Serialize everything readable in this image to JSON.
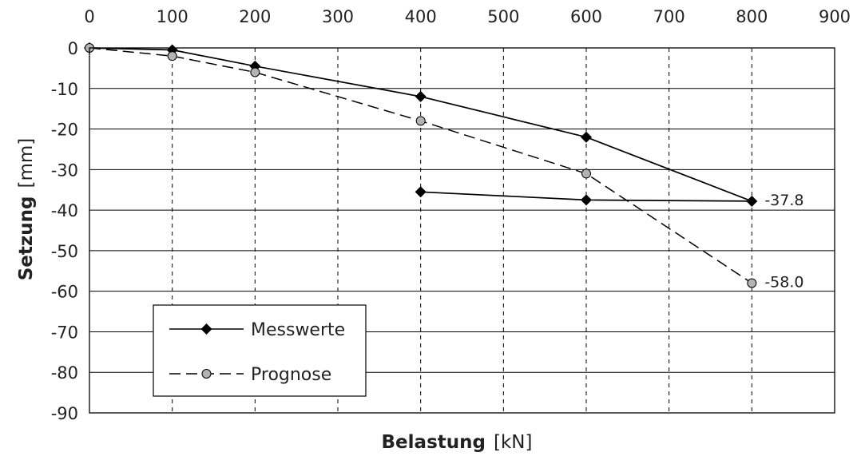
{
  "chart_data": {
    "type": "line",
    "xlabel": "Belastung",
    "xlabel_unit": "[kN]",
    "ylabel": "Setzung",
    "ylabel_unit": "[mm]",
    "xlim": [
      0,
      900
    ],
    "ylim": [
      -90,
      0
    ],
    "x_ticks": [
      0,
      100,
      200,
      300,
      400,
      500,
      600,
      700,
      800,
      900
    ],
    "y_ticks": [
      0,
      -10,
      -20,
      -30,
      -40,
      -50,
      -60,
      -70,
      -80,
      -90
    ],
    "x_axis_position": "top",
    "grid": {
      "x": "dashed",
      "y": "solid"
    },
    "legend_position": "bottom-left",
    "series": [
      {
        "name": "Messwerte",
        "line_style": "solid",
        "marker": "diamond",
        "color": "#000000",
        "points": [
          {
            "x": 0,
            "y": 0
          },
          {
            "x": 100,
            "y": -0.5
          },
          {
            "x": 200,
            "y": -4.5
          },
          {
            "x": 400,
            "y": -12
          },
          {
            "x": 600,
            "y": -22
          },
          {
            "x": 800,
            "y": -37.8
          },
          {
            "x": 600,
            "y": -37.5
          },
          {
            "x": 400,
            "y": -35.5
          }
        ]
      },
      {
        "name": "Prognose",
        "line_style": "dashed",
        "marker": "circle",
        "color": "#000000",
        "marker_fill": "#b3b3b3",
        "points": [
          {
            "x": 0,
            "y": 0
          },
          {
            "x": 100,
            "y": -2
          },
          {
            "x": 200,
            "y": -6
          },
          {
            "x": 400,
            "y": -18
          },
          {
            "x": 600,
            "y": -31
          },
          {
            "x": 800,
            "y": -58
          }
        ]
      }
    ],
    "annotations": [
      {
        "text": "-37.8",
        "x": 800,
        "y": -37.8
      },
      {
        "text": "-58.0",
        "x": 800,
        "y": -58.0
      }
    ]
  }
}
